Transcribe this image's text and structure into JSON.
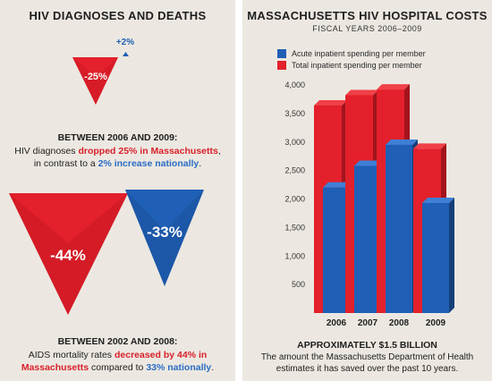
{
  "left": {
    "title": "HIV DIAGNOSES AND DEATHS",
    "diag": {
      "ma_label": "-25%",
      "us_label": "+2%",
      "heading": "BETWEEN 2006 AND 2009:",
      "line1_pre": "HIV diagnoses ",
      "line1_red": "dropped 25% in Massachusetts",
      "line1_post": ",",
      "line2_pre": "in contrast to a ",
      "line2_blue": "2% increase nationally",
      "line2_post": "."
    },
    "mort": {
      "ma_label": "-44%",
      "us_label": "-33%",
      "heading": "BETWEEN 2002 AND 2008:",
      "line1_pre": "AIDS mortality rates ",
      "line1_red": "decreased by 44% in",
      "line2_red": "Massachusetts",
      "line2_mid": " compared to ",
      "line2_blue": "33% nationally",
      "line2_post": "."
    },
    "colors": {
      "red": "#e3202b",
      "blue": "#1f5fb5"
    }
  },
  "right": {
    "title": "MASSACHUSETTS HIV HOSPITAL COSTS",
    "subtitle": "FISCAL YEARS 2006–2009",
    "footer_heading": "APPROXIMATELY $1.5 BILLION",
    "footer_line1": "The amount the Massachusetts Department of Health",
    "footer_line2": "estimates it has saved over the past 10 years."
  },
  "chart_data": {
    "type": "bar",
    "categories": [
      "2006",
      "2007",
      "2008",
      "2009"
    ],
    "series": [
      {
        "name": "Acute inpatient spending per member",
        "values": [
          2200,
          2580,
          2950,
          1930
        ],
        "color": "#1f5fb5"
      },
      {
        "name": "Total inpatient spending per member",
        "values": [
          3640,
          3820,
          3920,
          2880
        ],
        "color": "#e3202b"
      }
    ],
    "yticks": [
      500,
      1000,
      1500,
      2000,
      2500,
      3000,
      3500,
      4000
    ],
    "ytick_labels": [
      "500",
      "1,000",
      "1,500",
      "2,000",
      "2,500",
      "3,000",
      "3,500",
      "4,000"
    ],
    "ylim": [
      0,
      4000
    ],
    "legend_position": "top-left",
    "grid": false
  }
}
